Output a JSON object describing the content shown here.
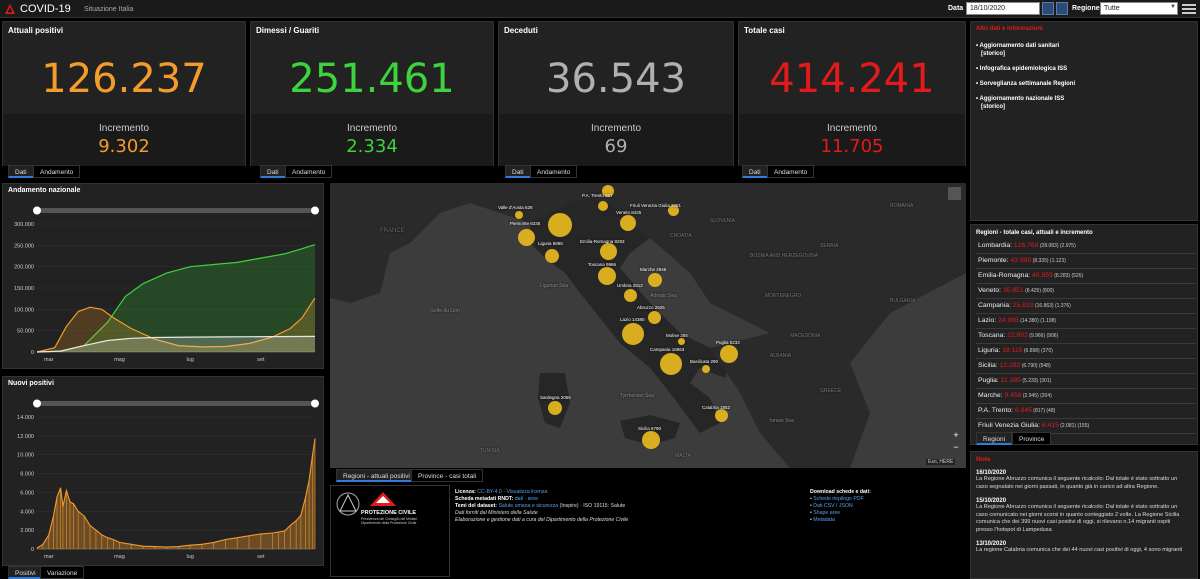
{
  "header": {
    "title": "COVID-19",
    "subtitle": "Situazione Italia",
    "data_label": "Data",
    "date_value": "18/10/2020",
    "regione_label": "Regione",
    "regione_value": "Tutte"
  },
  "kpis": {
    "attuali": {
      "title": "Attuali positivi",
      "value": "126.237",
      "inc_label": "Incremento",
      "inc_value": "9.302",
      "color": "#f39c2b"
    },
    "dimessi": {
      "title": "Dimessi / Guariti",
      "value": "251.461",
      "inc_label": "Incremento",
      "inc_value": "2.334",
      "color": "#3cd33c"
    },
    "deceduti": {
      "title": "Deceduti",
      "value": "36.543",
      "inc_label": "Incremento",
      "inc_value": "69",
      "color": "#b0b0b0"
    },
    "totale": {
      "title": "Totale casi",
      "value": "414.241",
      "inc_label": "Incremento",
      "inc_value": "11.705",
      "color": "#e31a1c"
    }
  },
  "kpi_tabs": {
    "dati": "Dati",
    "andamento": "Andamento"
  },
  "info_panel": {
    "title": "Altri dati e informazioni",
    "items": [
      {
        "label": "Aggiornamento dati sanitari",
        "sub": "[storico]"
      },
      {
        "label": "Infografica epidemiologica ISS",
        "sub": ""
      },
      {
        "label": "Sorveglianza settimanale Regioni",
        "sub": ""
      },
      {
        "label": "Aggiornamento nazionale ISS",
        "sub": "[storico]"
      }
    ]
  },
  "chart_data": [
    {
      "type": "area",
      "title": "Andamento nazionale",
      "x_ticks": [
        "mar",
        "mag",
        "lug",
        "set"
      ],
      "y_ticks": [
        "0",
        "50.000",
        "100.000",
        "150.000",
        "200.000",
        "250.000",
        "300.000"
      ],
      "ylim": [
        0,
        300000
      ],
      "xlim": [
        0,
        236
      ],
      "series": [
        {
          "color": "#3cd33c",
          "x": [
            0,
            20,
            40,
            60,
            75,
            90,
            110,
            130,
            150,
            170,
            190,
            210,
            225,
            236
          ],
          "values": [
            0,
            2000,
            15000,
            70000,
            130000,
            160000,
            185000,
            200000,
            205000,
            210000,
            220000,
            230000,
            242000,
            251461
          ]
        },
        {
          "color": "#f39c2b",
          "x": [
            0,
            15,
            25,
            35,
            45,
            55,
            65,
            80,
            100,
            120,
            140,
            160,
            180,
            200,
            215,
            225,
            232,
            236
          ],
          "values": [
            0,
            10000,
            60000,
            95000,
            105000,
            100000,
            80000,
            55000,
            30000,
            15000,
            12000,
            13000,
            20000,
            35000,
            55000,
            80000,
            110000,
            126237
          ]
        },
        {
          "color": "#e8e8e8",
          "x": [
            0,
            20,
            40,
            60,
            80,
            100,
            130,
            160,
            200,
            236
          ],
          "values": [
            0,
            2000,
            15000,
            27000,
            32000,
            34000,
            35000,
            35500,
            36000,
            36543
          ]
        }
      ]
    },
    {
      "type": "bar",
      "title": "Nuovi positivi",
      "x_ticks": [
        "mar",
        "mag",
        "lug",
        "set"
      ],
      "y_ticks": [
        "0",
        "2.000",
        "4.000",
        "6.000",
        "8.000",
        "10.000",
        "12.000",
        "14.000"
      ],
      "ylim": [
        0,
        14000
      ],
      "xlim": [
        0,
        236
      ],
      "x": [
        0,
        5,
        10,
        14,
        17,
        20,
        22,
        25,
        28,
        31,
        35,
        40,
        45,
        50,
        55,
        60,
        65,
        70,
        80,
        90,
        100,
        110,
        120,
        130,
        140,
        150,
        160,
        170,
        180,
        190,
        200,
        205,
        210,
        215,
        220,
        224,
        228,
        231,
        234,
        236
      ],
      "values": [
        100,
        500,
        1500,
        3500,
        5500,
        6500,
        4500,
        6200,
        5000,
        4800,
        4000,
        3500,
        2500,
        2000,
        1500,
        1200,
        1000,
        700,
        500,
        300,
        250,
        200,
        250,
        400,
        500,
        700,
        1000,
        1200,
        1400,
        1600,
        1700,
        1800,
        1900,
        2500,
        3000,
        3600,
        5500,
        7300,
        10000,
        11705
      ],
      "color": "#f39c2b"
    }
  ],
  "chart_tabs": {
    "positivi": "Positivi",
    "variazione": "Variazione"
  },
  "map": {
    "labels": {
      "francia": "FRANCE",
      "croatia": "CROATIA",
      "romania": "ROMANIA",
      "serbia": "SERBIA",
      "montenegro": "MONTENEGRO",
      "slovenia": "SLOVENIA",
      "bosnia": "BOSNIA AND HERZEGOVINA",
      "bulgaria": "BULGARIA",
      "adriatic": "Adriatic Sea",
      "tyrrhenian": "Tyrrhenian Sea",
      "ionian": "Ionian Sea",
      "ligurian": "Ligurian Sea",
      "albania": "ALBANIA",
      "macedonia": "MACEDONIA",
      "greece": "GREECE",
      "tunisia": "TUNISIA",
      "malta": "MALTA",
      "gulf_lion": "Golfe du Lion",
      "fyrom": "FORMER YUGOSLAV REPUBLIC OF MACEDONIA"
    },
    "attribution": "Esri, HERE",
    "tabs": {
      "regioni": "Regioni - attuali positivi",
      "province": "Province - casi totali"
    },
    "bubbles": [
      {
        "label": "P.A. Trento 817",
        "size": 12
      },
      {
        "label": "P.A. Bolzano",
        "size": 10
      },
      {
        "label": "Valle d'Aosta 628",
        "size": 8
      },
      {
        "label": "Lombardia 28083",
        "size": 24
      },
      {
        "label": "Veneto 8425",
        "size": 16
      },
      {
        "label": "Friuli Venezia Giulia 2081",
        "size": 11
      },
      {
        "label": "Piemonte 8335",
        "size": 17
      },
      {
        "label": "Liguria 6898",
        "size": 14
      },
      {
        "label": "Emilia-Romagna 8283",
        "size": 17
      },
      {
        "label": "Toscana 9966",
        "size": 18
      },
      {
        "label": "Marche 2945",
        "size": 14
      },
      {
        "label": "Umbria 2812",
        "size": 13
      },
      {
        "label": "Abruzzo 2625",
        "size": 13
      },
      {
        "label": "Lazio 14380",
        "size": 22
      },
      {
        "label": "Molise 355",
        "size": 7
      },
      {
        "label": "Puglia 5233",
        "size": 18
      },
      {
        "label": "Campania 16863",
        "size": 22
      },
      {
        "label": "Basilicata 290",
        "size": 8
      },
      {
        "label": "Sardegna 2056",
        "size": 14
      },
      {
        "label": "Calabria 1852",
        "size": 13
      },
      {
        "label": "Sicilia 6790",
        "size": 18
      }
    ]
  },
  "footer": {
    "licenza_label": "Licenza:",
    "licenza_value": "CC-BY-4.0",
    "licenza_link": "Visualizza licenza",
    "scheda_label": "Scheda metadati RNDT:",
    "scheda_links": "dati · aree",
    "temi_label": "Temi del dataset:",
    "temi_value": "Salute umana e sicurezza",
    "temi_rest": "(Inspire) · ISO 19115: Salute",
    "line4": "Dati forniti dal Ministero della Salute",
    "line5": "Elaborazione e gestione dati a cura del Dipartimento della Protezione Civile",
    "download_title": "Download schede e dati:",
    "downloads": [
      "Schede riepilogo PDF",
      "Dati CSV / JSON",
      "Shape aree",
      "Metadata"
    ],
    "pc_title": "PROTEZIONE CIVILE",
    "pc_sub1": "Presidenza del Consiglio dei Ministri",
    "pc_sub2": "Dipartimento della Protezione Civile"
  },
  "regioni_panel": {
    "title": "Regioni - totale casi, attuali e incremento",
    "rows": [
      {
        "name": "Lombardia:",
        "total": "126.768",
        "att": "(28.083)",
        "inc": "(2.975)"
      },
      {
        "name": "Piemonte:",
        "total": "43.990",
        "att": "(8.335)",
        "inc": "(1.123)"
      },
      {
        "name": "Emilia-Romagna:",
        "total": "40.859",
        "att": "(8.283)",
        "inc": "(526)"
      },
      {
        "name": "Veneto:",
        "total": "35.851",
        "att": "(8.425)",
        "inc": "(800)"
      },
      {
        "name": "Campania:",
        "total": "25.819",
        "att": "(16.863)",
        "inc": "(1.376)"
      },
      {
        "name": "Lazio:",
        "total": "24.988",
        "att": "(14.380)",
        "inc": "(1.198)"
      },
      {
        "name": "Toscana:",
        "total": "22.802",
        "att": "(9.966)",
        "inc": "(906)"
      },
      {
        "name": "Liguria:",
        "total": "18.115",
        "att": "(6.898)",
        "inc": "(370)"
      },
      {
        "name": "Sicilia:",
        "total": "12.292",
        "att": "(6.790)",
        "inc": "(548)"
      },
      {
        "name": "Puglia:",
        "total": "11.385",
        "att": "(5.233)",
        "inc": "(301)"
      },
      {
        "name": "Marche:",
        "total": "9.458",
        "att": "(2.945)",
        "inc": "(204)"
      },
      {
        "name": "P.A. Trento:",
        "total": "6.845",
        "att": "(817)",
        "inc": "(48)"
      },
      {
        "name": "Friuli Venezia Giulia:",
        "total": "6.415",
        "att": "(2.081)",
        "inc": "(155)"
      }
    ],
    "tabs": {
      "regioni": "Regioni",
      "province": "Province"
    }
  },
  "note": {
    "title": "Note",
    "items": [
      {
        "date": "16/10/2020",
        "text": "La Regione Abruzzo comunica il seguente ricalcolo: Dal totale è stato sottratto un caso segnalato nei giorni passati, in quanto già in carico ad altra Regione."
      },
      {
        "date": "15/10/2020",
        "text": "La Regione Abruzzo comunica il seguente ricalcolo: Dal totale è stato sottratto un caso comunicato nei giorni scorsi in quanto conteggiato 2 volte. La Regione Sicilia comunica che dei 399 nuovi casi positivi di oggi, si rilevano n.14 migranti ospiti presso l'hotspot di Lampedusa"
      },
      {
        "date": "13/10/2020",
        "text": "La regione Calabria comunica che dei 44 nuovi casi positivi di oggi, 4 sono migranti"
      }
    ]
  }
}
